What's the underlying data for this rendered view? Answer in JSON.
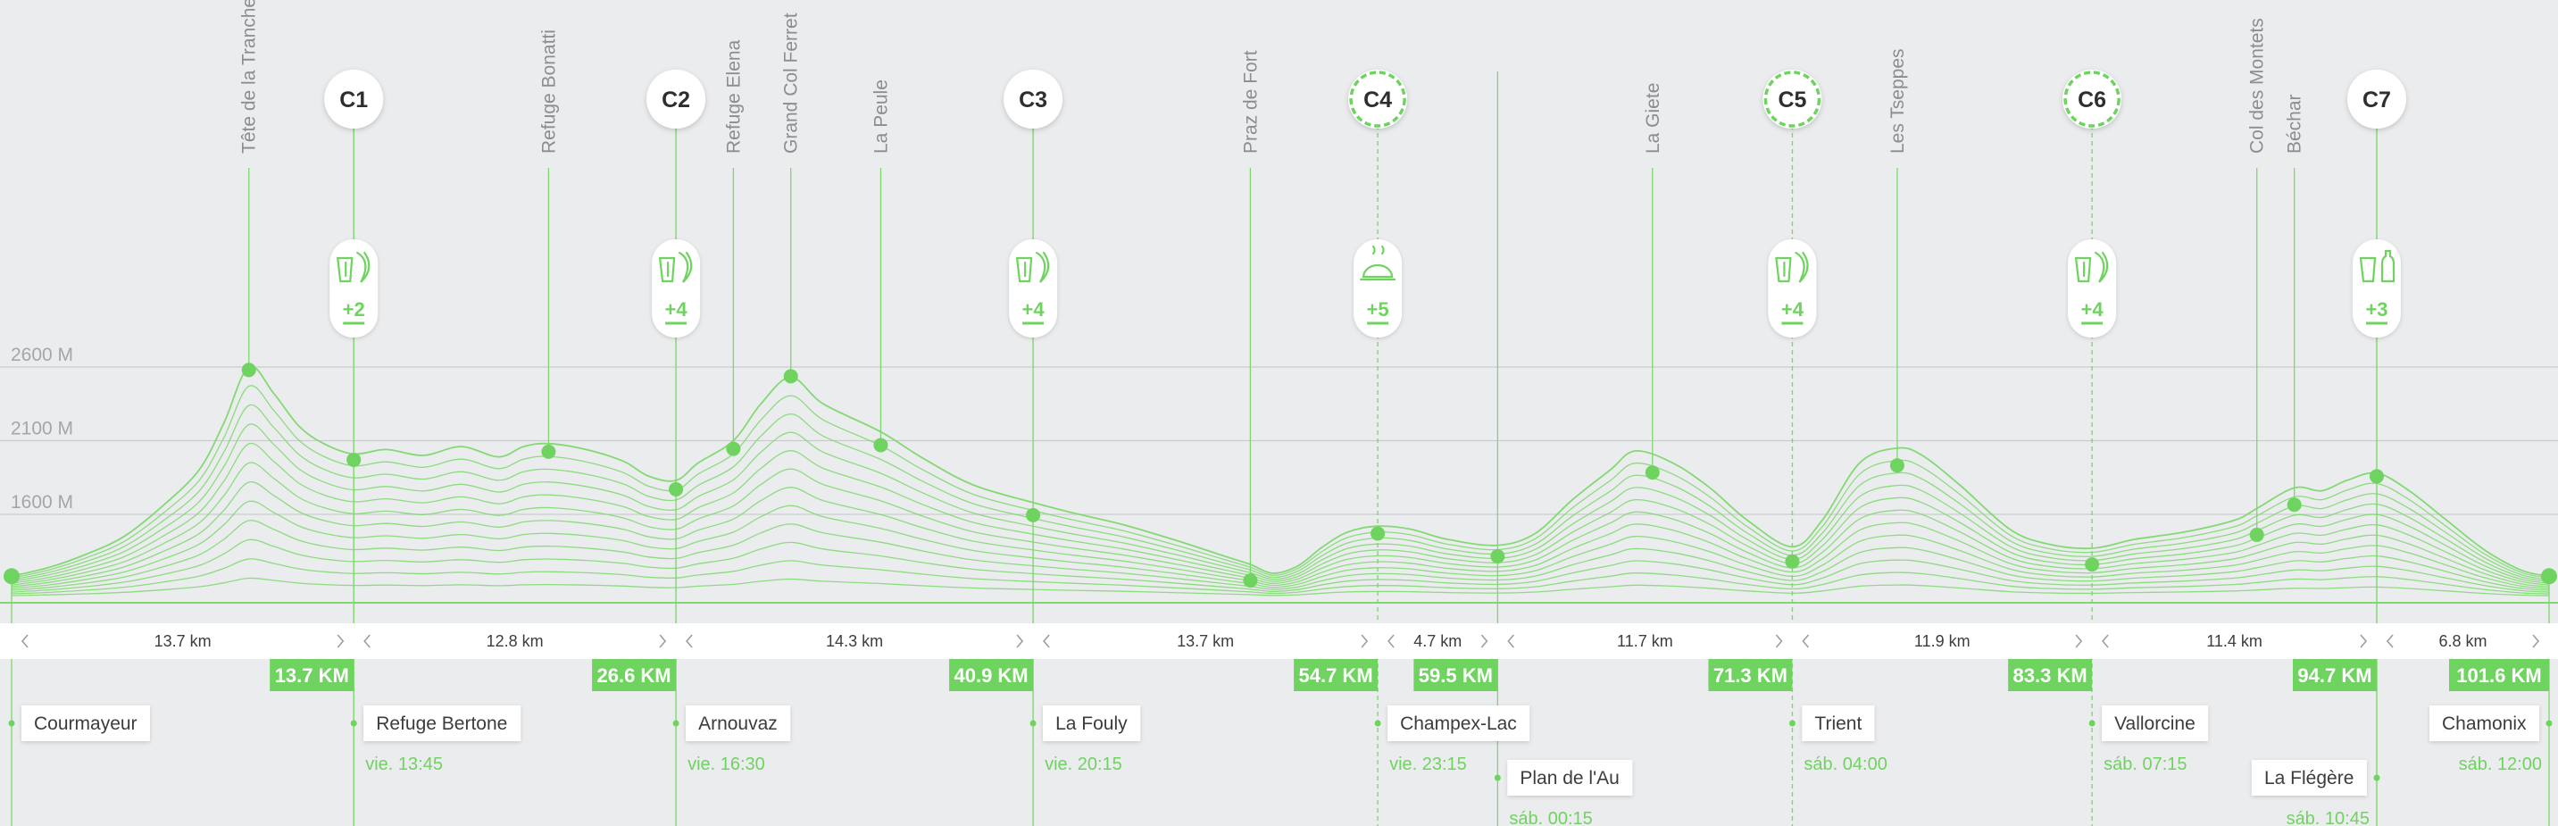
{
  "chart_data": {
    "type": "area",
    "title": "",
    "xlabel": "",
    "ylabel": "",
    "xlim": [
      0,
      101.6
    ],
    "ylim": [
      1000,
      2600
    ],
    "y_ticks": [
      {
        "value": 2600,
        "label": "2600 M"
      },
      {
        "value": 2100,
        "label": "2100 M"
      },
      {
        "value": 1600,
        "label": "1600 M"
      }
    ],
    "grid": true,
    "colors": {
      "accent": "#6fd35f",
      "line": "#7dd86d",
      "grid": "#c9cbcf",
      "label_grey": "#8b8d91"
    },
    "profile": [
      [
        0.0,
        1180
      ],
      [
        1.5,
        1240
      ],
      [
        3.0,
        1330
      ],
      [
        4.5,
        1450
      ],
      [
        6.0,
        1650
      ],
      [
        7.5,
        1900
      ],
      [
        8.5,
        2220
      ],
      [
        9.5,
        2600
      ],
      [
        10.5,
        2420
      ],
      [
        11.5,
        2200
      ],
      [
        12.5,
        2080
      ],
      [
        13.7,
        2010
      ],
      [
        15.0,
        2040
      ],
      [
        16.5,
        2000
      ],
      [
        18.0,
        2060
      ],
      [
        19.5,
        1990
      ],
      [
        20.5,
        2060
      ],
      [
        21.5,
        2080
      ],
      [
        23.0,
        2040
      ],
      [
        24.5,
        1960
      ],
      [
        25.5,
        1860
      ],
      [
        26.6,
        1830
      ],
      [
        27.5,
        1950
      ],
      [
        28.9,
        2100
      ],
      [
        30.0,
        2350
      ],
      [
        31.2,
        2530
      ],
      [
        32.5,
        2350
      ],
      [
        34.8,
        2160
      ],
      [
        36.5,
        1980
      ],
      [
        38.5,
        1800
      ],
      [
        40.9,
        1680
      ],
      [
        42.5,
        1610
      ],
      [
        44.5,
        1530
      ],
      [
        46.5,
        1430
      ],
      [
        48.5,
        1320
      ],
      [
        49.6,
        1260
      ],
      [
        50.5,
        1200
      ],
      [
        51.5,
        1250
      ],
      [
        52.5,
        1380
      ],
      [
        53.5,
        1480
      ],
      [
        54.7,
        1520
      ],
      [
        56.0,
        1500
      ],
      [
        57.5,
        1430
      ],
      [
        59.5,
        1390
      ],
      [
        61.0,
        1470
      ],
      [
        62.5,
        1700
      ],
      [
        64.0,
        1900
      ],
      [
        65.0,
        2030
      ],
      [
        66.5,
        1950
      ],
      [
        68.0,
        1780
      ],
      [
        69.5,
        1560
      ],
      [
        71.3,
        1380
      ],
      [
        72.5,
        1560
      ],
      [
        74.0,
        1950
      ],
      [
        75.5,
        2050
      ],
      [
        76.5,
        2000
      ],
      [
        78.0,
        1800
      ],
      [
        80.0,
        1500
      ],
      [
        81.5,
        1400
      ],
      [
        83.3,
        1370
      ],
      [
        85.0,
        1430
      ],
      [
        87.0,
        1480
      ],
      [
        89.0,
        1560
      ],
      [
        89.9,
        1640
      ],
      [
        91.4,
        1780
      ],
      [
        92.5,
        1760
      ],
      [
        93.5,
        1830
      ],
      [
        94.7,
        1880
      ],
      [
        96.0,
        1760
      ],
      [
        97.5,
        1560
      ],
      [
        99.0,
        1360
      ],
      [
        100.5,
        1220
      ],
      [
        101.6,
        1180
      ]
    ],
    "summits": [
      {
        "name": "Tête de la Tranche",
        "km": 9.5,
        "ele": 2580
      },
      {
        "name": "Refuge Bonatti",
        "km": 21.5,
        "ele": 2025
      },
      {
        "name": "Refuge Elena",
        "km": 28.9,
        "ele": 2045
      },
      {
        "name": "Grand Col Ferret",
        "km": 31.2,
        "ele": 2537
      },
      {
        "name": "La Peule",
        "km": 34.8,
        "ele": 2070
      },
      {
        "name": "Praz de Fort",
        "km": 49.6,
        "ele": 1151
      },
      {
        "name": "La Giete",
        "km": 65.7,
        "ele": 1884
      },
      {
        "name": "Les Tseppes",
        "km": 75.5,
        "ele": 1932
      },
      {
        "name": "Col des Montets",
        "km": 89.9,
        "ele": 1461
      },
      {
        "name": "Béchar",
        "km": 91.4,
        "ele": 1665
      }
    ],
    "checkpoints": [
      {
        "id": "C1",
        "km": 13.7,
        "ele": 1970,
        "bonus": "+2",
        "icon": "drink-food-icon",
        "dashed": false
      },
      {
        "id": "C2",
        "km": 26.6,
        "ele": 1770,
        "bonus": "+4",
        "icon": "drink-food-icon",
        "dashed": false
      },
      {
        "id": "C3",
        "km": 40.9,
        "ele": 1595,
        "bonus": "+4",
        "icon": "drink-food-icon",
        "dashed": false
      },
      {
        "id": "C4",
        "km": 54.7,
        "ele": 1470,
        "bonus": "+5",
        "icon": "hot-meal-icon",
        "dashed": true
      },
      {
        "id": "C5",
        "km": 71.3,
        "ele": 1280,
        "bonus": "+4",
        "icon": "drink-food-icon",
        "dashed": true
      },
      {
        "id": "C6",
        "km": 83.3,
        "ele": 1260,
        "bonus": "+4",
        "icon": "drink-food-icon",
        "dashed": true
      },
      {
        "id": "C7",
        "km": 94.7,
        "ele": 1858,
        "bonus": "+3",
        "icon": "drink-bottle-icon",
        "dashed": false
      }
    ],
    "extra_markers": [
      {
        "km": 59.5,
        "ele": 1315
      }
    ],
    "segments": [
      {
        "from": 0,
        "to": 13.7,
        "label": "13.7 km"
      },
      {
        "from": 13.7,
        "to": 26.6,
        "label": "12.8 km"
      },
      {
        "from": 26.6,
        "to": 40.9,
        "label": "14.3 km"
      },
      {
        "from": 40.9,
        "to": 54.7,
        "label": "13.7 km"
      },
      {
        "from": 54.7,
        "to": 59.5,
        "label": "4.7 km"
      },
      {
        "from": 59.5,
        "to": 71.3,
        "label": "11.7 km"
      },
      {
        "from": 71.3,
        "to": 83.3,
        "label": "11.9 km"
      },
      {
        "from": 83.3,
        "to": 94.7,
        "label": "11.4 km"
      },
      {
        "from": 94.7,
        "to": 101.6,
        "label": "6.8 km"
      }
    ],
    "km_badges": [
      {
        "km": 13.7,
        "label": "13.7 KM"
      },
      {
        "km": 26.6,
        "label": "26.6 KM"
      },
      {
        "km": 40.9,
        "label": "40.9 KM"
      },
      {
        "km": 54.7,
        "label": "54.7 KM"
      },
      {
        "km": 59.5,
        "label": "59.5 KM"
      },
      {
        "km": 71.3,
        "label": "71.3 KM"
      },
      {
        "km": 83.3,
        "label": "83.3 KM"
      },
      {
        "km": 94.7,
        "label": "94.7 KM"
      },
      {
        "km": 101.6,
        "label": "101.6 KM"
      }
    ],
    "locations": [
      {
        "km": 0,
        "name": "Courmayeur",
        "time": "",
        "side": "right",
        "row": 0
      },
      {
        "km": 13.7,
        "name": "Refuge Bertone",
        "time": "vie. 13:45",
        "side": "right",
        "row": 0
      },
      {
        "km": 26.6,
        "name": "Arnouvaz",
        "time": "vie. 16:30",
        "side": "right",
        "row": 0
      },
      {
        "km": 40.9,
        "name": "La Fouly",
        "time": "vie. 20:15",
        "side": "right",
        "row": 0
      },
      {
        "km": 54.7,
        "name": "Champex-Lac",
        "time": "vie. 23:15",
        "side": "right",
        "row": 0
      },
      {
        "km": 59.5,
        "name": "Plan de l'Au",
        "time": "sáb. 00:15",
        "side": "right",
        "row": 1
      },
      {
        "km": 71.3,
        "name": "Trient",
        "time": "sáb. 04:00",
        "side": "right",
        "row": 0
      },
      {
        "km": 83.3,
        "name": "Vallorcine",
        "time": "sáb. 07:15",
        "side": "right",
        "row": 0
      },
      {
        "km": 94.7,
        "name": "La Flégère",
        "time": "sáb. 10:45",
        "side": "left",
        "row": 1
      },
      {
        "km": 101.6,
        "name": "Chamonix",
        "time": "sáb. 12:00",
        "side": "left",
        "row": 0
      }
    ]
  }
}
